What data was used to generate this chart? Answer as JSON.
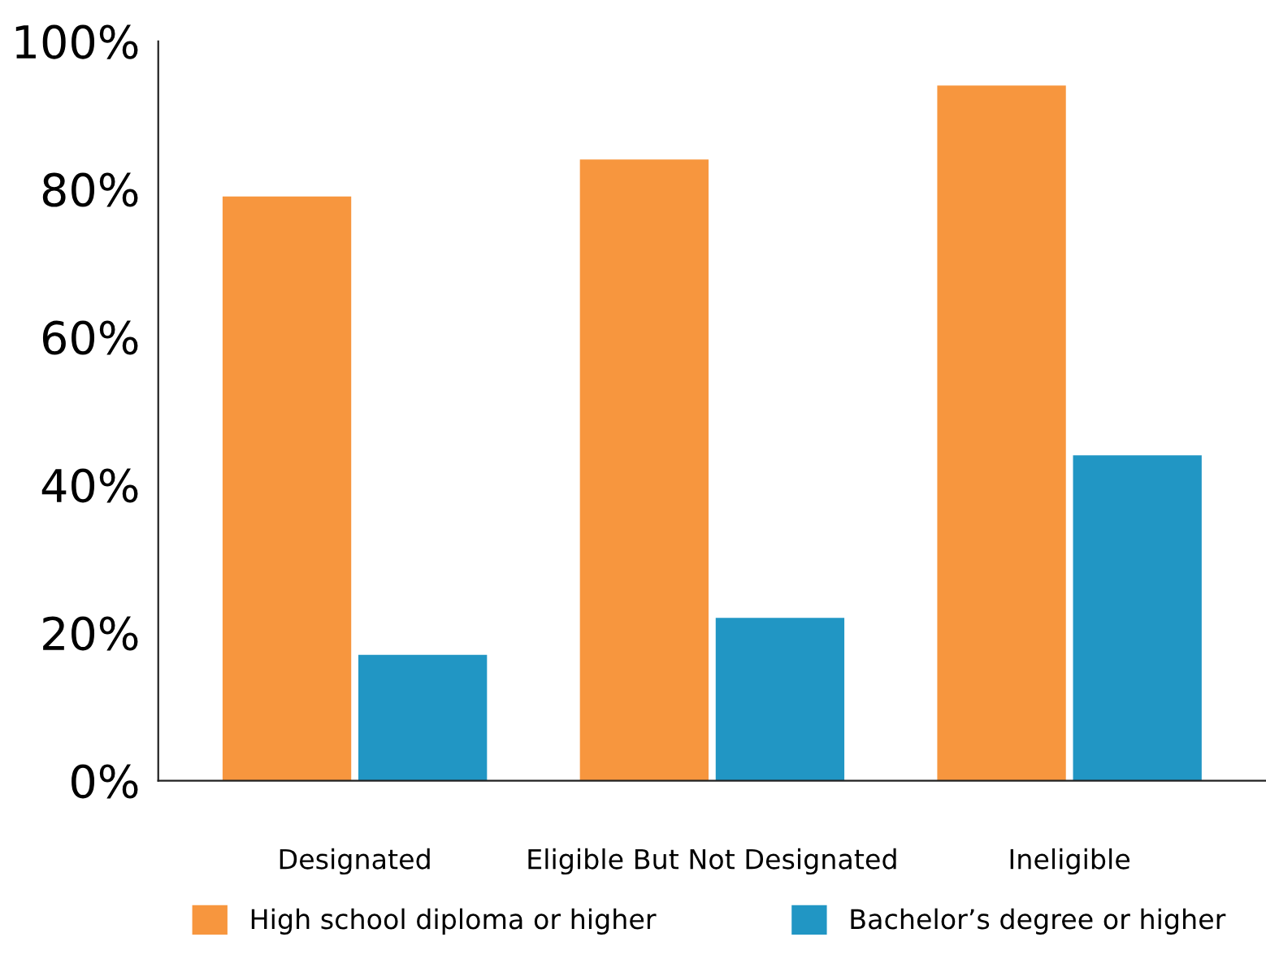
{
  "chart_data": {
    "type": "bar",
    "categories": [
      "Designated",
      "Eligible But Not Designated",
      "Ineligible"
    ],
    "series": [
      {
        "name": "High school diploma or higher",
        "color": "#f7963e",
        "values": [
          79,
          84,
          94
        ]
      },
      {
        "name": "Bachelor’s degree or higher",
        "color": "#2196c4",
        "values": [
          17,
          22,
          44
        ]
      }
    ],
    "ylim": [
      0,
      100
    ],
    "yticks": [
      {
        "value": 0,
        "label": "0%"
      },
      {
        "value": 20,
        "label": "20%"
      },
      {
        "value": 40,
        "label": "40%"
      },
      {
        "value": 60,
        "label": "60%"
      },
      {
        "value": 80,
        "label": "80%"
      },
      {
        "value": 100,
        "label": "100%"
      }
    ],
    "grid": false,
    "legend": "bottom"
  }
}
